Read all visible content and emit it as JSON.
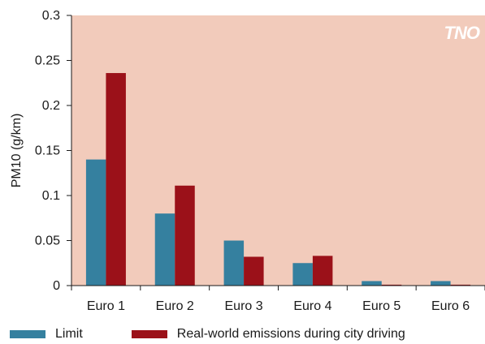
{
  "chart_data": {
    "type": "bar",
    "title": "",
    "xlabel": "",
    "ylabel": "PM10 (g/km)",
    "ylim": [
      0,
      0.3
    ],
    "yticks": [
      "0",
      "0.05",
      "0.1",
      "0.15",
      "0.2",
      "0.25",
      "0.3"
    ],
    "categories": [
      "Euro 1",
      "Euro 2",
      "Euro 3",
      "Euro 4",
      "Euro 5",
      "Euro 6"
    ],
    "series": [
      {
        "name": "Limit",
        "color": "#35809f",
        "values": [
          0.14,
          0.08,
          0.05,
          0.025,
          0.005,
          0.005
        ]
      },
      {
        "name": "Real-world emissions during city driving",
        "color": "#9b1119",
        "values": [
          0.236,
          0.111,
          0.032,
          0.033,
          0.001,
          0.001
        ]
      }
    ],
    "grid": false,
    "legend_position": "bottom",
    "plot_background": "#f2cbbb",
    "logo": "TNO"
  }
}
